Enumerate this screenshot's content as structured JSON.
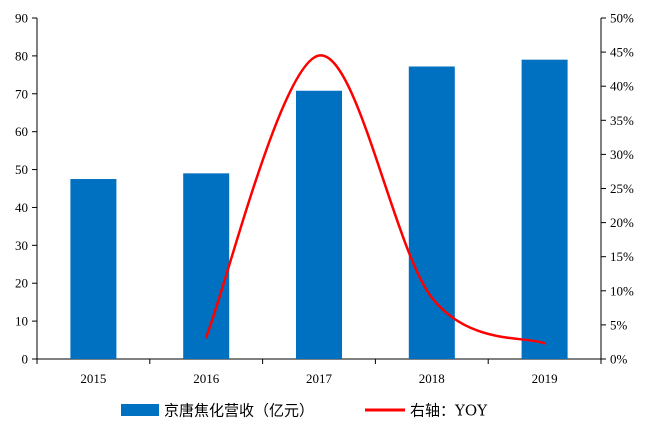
{
  "chart_data": {
    "type": "bar",
    "categories": [
      "2015",
      "2016",
      "2017",
      "2018",
      "2019"
    ],
    "series": [
      {
        "name": "京唐焦化营收（亿元）",
        "type": "bar",
        "axis": "left",
        "color": "#0070C0",
        "values": [
          47.5,
          49,
          70.8,
          77.2,
          79
        ]
      },
      {
        "name": "右轴：YOY",
        "type": "line",
        "axis": "right",
        "color": "#FF0000",
        "values": [
          null,
          3.2,
          44.5,
          9.0,
          2.3
        ]
      }
    ],
    "y_left": {
      "lim": [
        0,
        90
      ],
      "ticks": [
        "0",
        "10",
        "20",
        "30",
        "40",
        "50",
        "60",
        "70",
        "80",
        "90"
      ]
    },
    "y_right": {
      "lim": [
        0,
        50
      ],
      "ticks": [
        "0%",
        "5%",
        "10%",
        "15%",
        "20%",
        "25%",
        "30%",
        "35%",
        "40%",
        "45%",
        "50%"
      ]
    },
    "legend": {
      "position": "bottom",
      "items": [
        {
          "label": "京唐焦化营收（亿元）",
          "color": "#0070C0",
          "kind": "bar"
        },
        {
          "label": "右轴：YOY",
          "color": "#FF0000",
          "kind": "line"
        }
      ]
    },
    "grid": false
  }
}
